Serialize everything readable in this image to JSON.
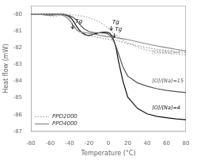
{
  "chart_data": {
    "type": "line",
    "xlabel": "Temperature (°C)",
    "ylabel": "Heat flow (mW)",
    "xlim": [
      -80,
      80
    ],
    "ylim": [
      -87,
      -79.5
    ],
    "xticks": [
      -80,
      -60,
      -40,
      -20,
      0,
      20,
      40,
      60,
      80
    ],
    "yticks": [
      -80,
      -81,
      -82,
      -83,
      -84,
      -85,
      -86,
      -87
    ],
    "grid": false,
    "legend": "lower left",
    "series": [
      {
        "name": "PPO2000",
        "color": "#999999",
        "line_style": "dotted",
        "x": [
          -80,
          -75,
          -70,
          -65,
          -62,
          -60,
          -57,
          -55,
          -52,
          -50,
          -48,
          -45,
          -42,
          -40,
          -38,
          -35,
          -30,
          -25,
          -20,
          -15,
          -10,
          -5,
          0,
          10,
          20,
          30,
          40,
          50,
          60,
          70,
          80
        ],
        "values": [
          -80.0,
          -80.0,
          -80.02,
          -80.05,
          -80.08,
          -80.1,
          -80.12,
          -80.12,
          -80.1,
          -80.08,
          -80.08,
          -80.12,
          -80.2,
          -80.3,
          -80.45,
          -80.7,
          -81.05,
          -81.25,
          -81.3,
          -81.35,
          -81.4,
          -81.45,
          -81.5,
          -81.6,
          -81.75,
          -81.88,
          -82.0,
          -82.1,
          -82.18,
          -82.25,
          -82.3
        ]
      },
      {
        "name": "PPO4000",
        "color": "#888888",
        "line_style": "solid",
        "x": [
          -80,
          -75,
          -72,
          -70,
          -68,
          -65,
          -63,
          -60,
          -57,
          -55,
          -52,
          -50,
          -48,
          -46,
          -44,
          -42,
          -40,
          -38,
          -36,
          -34,
          -32,
          -30,
          -27,
          -25,
          -22,
          -20,
          -15,
          -10,
          -5,
          0,
          5,
          10,
          20,
          30,
          40,
          50,
          60,
          70,
          80
        ],
        "values": [
          -80.0,
          -80.0,
          -80.01,
          -80.02,
          -80.04,
          -80.06,
          -80.08,
          -80.09,
          -80.07,
          -80.05,
          -80.04,
          -80.04,
          -80.06,
          -80.1,
          -80.16,
          -80.25,
          -80.38,
          -80.55,
          -80.72,
          -80.88,
          -80.98,
          -81.05,
          -81.08,
          -81.1,
          -81.12,
          -81.15,
          -81.2,
          -81.25,
          -81.3,
          -81.35,
          -81.38,
          -81.42,
          -81.52,
          -81.65,
          -81.78,
          -81.9,
          -82.0,
          -82.1,
          -82.2
        ]
      },
      {
        "color": "#aaaaaa",
        "line_style": "dotted",
        "x": [
          -80,
          -75,
          -70,
          -65,
          -60,
          -55,
          -50,
          -45,
          -40,
          -35,
          -30,
          -25,
          -20,
          -15,
          -10,
          -5,
          0,
          5,
          10,
          15,
          20,
          30,
          40,
          50,
          60,
          70,
          80
        ],
        "values": [
          -80.0,
          -80.0,
          -80.0,
          -80.0,
          -80.0,
          -80.0,
          -80.0,
          -80.0,
          -80.02,
          -80.05,
          -80.1,
          -80.15,
          -80.22,
          -80.32,
          -80.45,
          -80.62,
          -80.85,
          -81.12,
          -81.35,
          -81.55,
          -81.72,
          -81.98,
          -82.15,
          -82.25,
          -82.32,
          -82.38,
          -82.42
        ]
      },
      {
        "color": "#555555",
        "line_style": "solid",
        "x": [
          -80,
          -75,
          -70,
          -65,
          -60,
          -55,
          -50,
          -46,
          -43,
          -40,
          -37,
          -34,
          -32,
          -30,
          -28,
          -25,
          -22,
          -20,
          -15,
          -10,
          -5,
          -2,
          0,
          2,
          4,
          6,
          8,
          10,
          15,
          20,
          30,
          40,
          50,
          60,
          70,
          80
        ],
        "values": [
          -80.0,
          -80.0,
          -80.0,
          -80.0,
          -80.0,
          -80.0,
          -80.0,
          -80.02,
          -80.05,
          -80.1,
          -80.18,
          -80.3,
          -80.42,
          -80.58,
          -80.72,
          -80.88,
          -80.98,
          -81.05,
          -81.1,
          -81.12,
          -81.13,
          -81.15,
          -81.2,
          -81.3,
          -81.45,
          -81.68,
          -81.95,
          -82.3,
          -83.15,
          -83.7,
          -84.1,
          -84.3,
          -84.45,
          -84.55,
          -84.62,
          -84.68
        ]
      },
      {
        "color": "#111111",
        "line_style": "solid",
        "x": [
          -80,
          -75,
          -70,
          -65,
          -60,
          -55,
          -50,
          -47,
          -44,
          -41,
          -39,
          -37,
          -35,
          -33,
          -30,
          -27,
          -24,
          -21,
          -18,
          -15,
          -12,
          -10,
          -8,
          -5,
          -3,
          0,
          2,
          4,
          6,
          8,
          10,
          15,
          20,
          30,
          40,
          50,
          60,
          70,
          80
        ],
        "values": [
          -80.0,
          -80.0,
          -80.0,
          -80.0,
          -80.0,
          -80.0,
          -80.0,
          -80.02,
          -80.06,
          -80.13,
          -80.22,
          -80.35,
          -80.52,
          -80.72,
          -80.95,
          -81.12,
          -81.22,
          -81.28,
          -81.25,
          -81.2,
          -81.15,
          -81.12,
          -81.1,
          -81.08,
          -81.08,
          -81.1,
          -81.18,
          -81.35,
          -81.62,
          -82.05,
          -82.7,
          -84.0,
          -84.95,
          -85.62,
          -85.95,
          -86.1,
          -86.18,
          -86.25,
          -86.3
        ]
      }
    ],
    "annotations": [
      {
        "text": "Tg",
        "x": -34,
        "y": -80.62,
        "arrow": {
          "x": -37,
          "from": -80.62,
          "to": -80.88
        }
      },
      {
        "text": "Tg",
        "x": 4,
        "y": -80.68,
        "arrow": {
          "x": 3,
          "from": -80.72,
          "to": -80.97
        }
      },
      {
        "text": "Tg",
        "x": 7,
        "y": -81.1,
        "arrow": {
          "x": 6,
          "from": -81.15,
          "to": -81.4
        }
      },
      {
        "text": "[O]/[Na]=4",
        "x": 45,
        "y": -82.3,
        "color": "#aaaaaa"
      },
      {
        "text": "[O]/[Na]=15",
        "x": 45,
        "y": -84.0,
        "color": "#555555"
      },
      {
        "text": "[O]/[Na]=4",
        "x": 45,
        "y": -85.6,
        "color": "#111111"
      }
    ]
  }
}
